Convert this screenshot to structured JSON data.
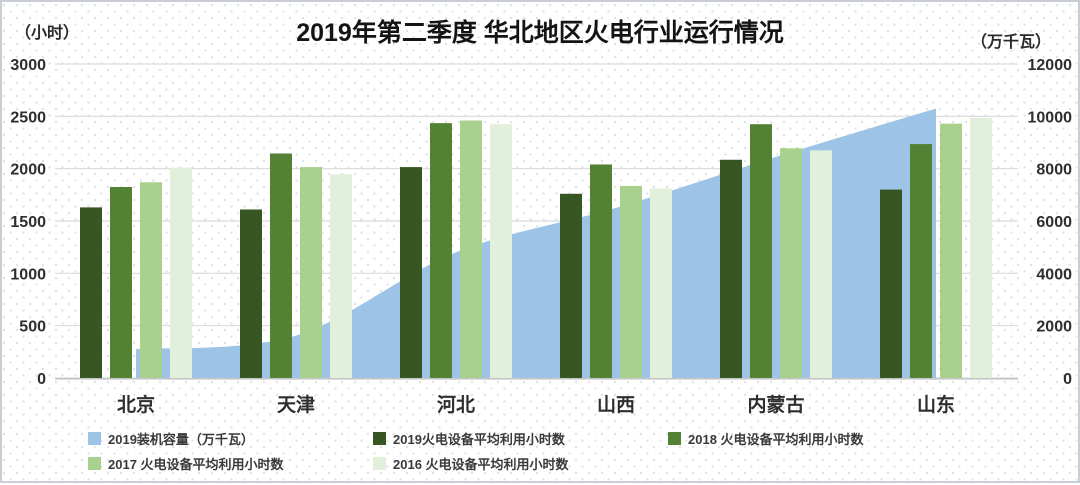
{
  "header": {
    "title": "2019年第二季度 华北地区火电行业运行情况"
  },
  "legend": {
    "items": [
      {
        "label": "2019装机容量（万千瓦）",
        "color": "#9DC3E6"
      },
      {
        "label": "2019火电设备平均利用小时数",
        "color": "#375623"
      },
      {
        "label": "2018 火电设备平均利用小时数",
        "color": "#548235"
      },
      {
        "label": "2017 火电设备平均利用小时数",
        "color": "#A9D18E"
      },
      {
        "label": "2016 火电设备平均利用小时数",
        "color": "#E2EFDA"
      }
    ]
  },
  "chart_data": {
    "type": "combo-bar-area",
    "title": "2019年第二季度 华北地区火电行业运行情况",
    "categories": [
      "北京",
      "天津",
      "河北",
      "山西",
      "内蒙古",
      "山东"
    ],
    "series": [
      {
        "name": "2019装机容量（万千瓦）",
        "type": "area",
        "y_axis": "right",
        "color": "#9DC3E6",
        "smooth": true,
        "values": [
          1100,
          1620,
          4800,
          6500,
          8450,
          10300
        ]
      },
      {
        "name": "2019火电设备平均利用小时数",
        "type": "bar",
        "y_axis": "left",
        "color": "#375623",
        "values": [
          1630,
          1610,
          2015,
          1760,
          2085,
          1800
        ]
      },
      {
        "name": "2018 火电设备平均利用小时数",
        "type": "bar",
        "y_axis": "left",
        "color": "#548235",
        "values": [
          1825,
          2145,
          2435,
          2040,
          2425,
          2235
        ]
      },
      {
        "name": "2017 火电设备平均利用小时数",
        "type": "bar",
        "y_axis": "left",
        "color": "#A9D18E",
        "values": [
          1870,
          2015,
          2460,
          1835,
          2195,
          2430
        ]
      },
      {
        "name": "2016 火电设备平均利用小时数",
        "type": "bar",
        "y_axis": "left",
        "color": "#E2EFDA",
        "values": [
          2010,
          1945,
          2425,
          1810,
          2175,
          2485
        ]
      }
    ],
    "left_axis": {
      "unit": "（小时）",
      "min": 0,
      "max": 3000,
      "step": 500,
      "ticks": [
        0,
        500,
        1000,
        1500,
        2000,
        2500,
        3000
      ]
    },
    "right_axis": {
      "unit": "（万千瓦）",
      "min": 0,
      "max": 12000,
      "step": 2000,
      "ticks": [
        0,
        2000,
        4000,
        6000,
        8000,
        10000,
        12000
      ]
    },
    "grid": "horizontal",
    "legend_position": "bottom"
  }
}
